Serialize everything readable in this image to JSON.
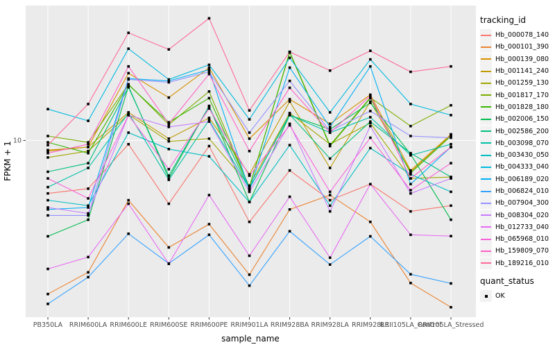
{
  "chart_data": {
    "type": "line",
    "title": "",
    "xlabel": "sample_name",
    "ylabel": "FPKM + 1",
    "y_scale": "log10",
    "ylim": [
      1.44,
      44
    ],
    "y_tick_labels": [
      "10"
    ],
    "grid": "major-white-on-grey-panel",
    "panel_bg": "#EBEBEB",
    "grid_color": "#FFFFFF",
    "tick_text_color": "#4D4D4D",
    "point_shape": "filled-black-square",
    "legend_position": "right",
    "samples": [
      "PB350LA",
      "RRIM600LA",
      "RRIM600LE",
      "RRIM600SE",
      "RRIM600PE",
      "RRIM901LA",
      "RRIM928BA",
      "RRIM928LA",
      "RRIM928LE",
      "RRII105LA_Control",
      "RRII105LA_Stressed"
    ],
    "series": [
      {
        "name": "Hb_000078_140",
        "color": "#F8766D",
        "quant_status": "OK",
        "values": [
          5.6,
          5.9,
          9.6,
          5.0,
          9.4,
          4.1,
          7.2,
          5.2,
          6.2,
          4.6,
          4.9
        ]
      },
      {
        "name": "Hb_000101_390",
        "color": "#EA8331",
        "quant_status": "OK",
        "values": [
          1.86,
          2.36,
          5.2,
          3.1,
          4.0,
          2.3,
          4.7,
          5.5,
          4.1,
          2.1,
          1.61
        ]
      },
      {
        "name": "Hb_000139_080",
        "color": "#D89000",
        "quant_status": "OK",
        "values": [
          9.0,
          9.3,
          20.9,
          16.0,
          22.2,
          10.2,
          15.7,
          12.0,
          16.5,
          7.2,
          10.7
        ]
      },
      {
        "name": "Hb_001141_240",
        "color": "#C09B00",
        "quant_status": "OK",
        "values": [
          8.9,
          9.3,
          13.6,
          10.2,
          12.8,
          6.9,
          15.3,
          7.4,
          15.3,
          7.1,
          10.6
        ]
      },
      {
        "name": "Hb_001259_130",
        "color": "#A3A500",
        "quant_status": "OK",
        "values": [
          8.3,
          8.9,
          13.3,
          9.9,
          10.2,
          6.1,
          13.5,
          9.6,
          12.1,
          6.6,
          6.7
        ]
      },
      {
        "name": "Hb_001817_170",
        "color": "#7CAE00",
        "quant_status": "OK",
        "values": [
          10.5,
          9.8,
          18.5,
          11.9,
          17.1,
          6.0,
          26.4,
          9.5,
          16.0,
          11.7,
          14.7
        ]
      },
      {
        "name": "Hb_001828_180",
        "color": "#39B600",
        "quant_status": "OK",
        "values": [
          9.8,
          8.7,
          18.4,
          12.2,
          15.9,
          6.0,
          26.2,
          9.4,
          15.9,
          7.0,
          10.5
        ]
      },
      {
        "name": "Hb_002006_150",
        "color": "#00BB4E",
        "quant_status": "OK",
        "values": [
          3.5,
          4.2,
          18.1,
          6.6,
          14.6,
          5.1,
          13.2,
          11.3,
          15.1,
          8.6,
          4.2
        ]
      },
      {
        "name": "Hb_002586_200",
        "color": "#00BF7D",
        "quant_status": "OK",
        "values": [
          7.1,
          7.8,
          17.9,
          6.8,
          14.5,
          5.9,
          13.3,
          8.2,
          12.3,
          8.7,
          6.7
        ]
      },
      {
        "name": "Hb_003098_070",
        "color": "#00C1A7",
        "quant_status": "OK",
        "values": [
          6.0,
          7.4,
          13.5,
          6.5,
          12.5,
          5.9,
          13.2,
          10.9,
          12.9,
          8.5,
          9.6
        ]
      },
      {
        "name": "Hb_003430_050",
        "color": "#00BFC4",
        "quant_status": "OK",
        "values": [
          5.2,
          4.9,
          10.9,
          9.1,
          8.4,
          5.1,
          9.5,
          4.9,
          9.2,
          6.9,
          5.7
        ]
      },
      {
        "name": "Hb_004333_040",
        "color": "#00BAE0",
        "quant_status": "OK",
        "values": [
          14.1,
          12.4,
          27.3,
          19.5,
          22.9,
          12.6,
          24.7,
          13.6,
          24.3,
          14.9,
          13.2
        ]
      },
      {
        "name": "Hb_006189_020",
        "color": "#00B0F6",
        "quant_status": "OK",
        "values": [
          4.7,
          4.8,
          19.7,
          19.2,
          21.7,
          5.8,
          22.2,
          11.6,
          22.5,
          6.2,
          9.3
        ]
      },
      {
        "name": "Hb_006824_010",
        "color": "#35A2FF",
        "quant_status": "OK",
        "values": [
          1.67,
          2.24,
          3.6,
          2.6,
          3.56,
          2.04,
          3.7,
          2.57,
          3.5,
          2.31,
          2.09
        ]
      },
      {
        "name": "Hb_007904_300",
        "color": "#9590FF",
        "quant_status": "OK",
        "values": [
          4.4,
          4.4,
          19.5,
          18.9,
          21.2,
          10.9,
          19.2,
          11.1,
          13.8,
          10.5,
          10.3
        ]
      },
      {
        "name": "Hb_008304_020",
        "color": "#C77CFF",
        "quant_status": "OK",
        "values": [
          4.8,
          4.5,
          13.2,
          11.6,
          12.3,
          5.7,
          12.0,
          4.6,
          11.7,
          5.6,
          6.6
        ]
      },
      {
        "name": "Hb_012733_040",
        "color": "#E76BF3",
        "quant_status": "OK",
        "values": [
          2.45,
          2.79,
          5.0,
          2.59,
          5.5,
          2.83,
          5.4,
          2.77,
          6.2,
          3.56,
          3.51
        ]
      },
      {
        "name": "Hb_065968_010",
        "color": "#FA62DB",
        "quant_status": "OK",
        "values": [
          6.6,
          5.3,
          13.2,
          7.3,
          14.2,
          6.8,
          11.8,
          5.7,
          10.3,
          5.8,
          7.8
        ]
      },
      {
        "name": "Hb_159809_070",
        "color": "#FF61C7",
        "quant_status": "OK",
        "values": [
          8.7,
          9.6,
          22.5,
          12.0,
          20.7,
          8.9,
          17.8,
          10.9,
          16.3,
          6.6,
          9.3
        ]
      },
      {
        "name": "Hb_189216_010",
        "color": "#FF6A98",
        "quant_status": "OK",
        "values": [
          9.5,
          14.9,
          32.5,
          27.1,
          38.1,
          13.9,
          26.4,
          21.5,
          26.7,
          21.2,
          22.5
        ]
      }
    ]
  },
  "legend": {
    "tracking_title": "tracking_id",
    "quant_title": "quant_status",
    "quant_items": [
      {
        "label": "OK"
      }
    ]
  }
}
